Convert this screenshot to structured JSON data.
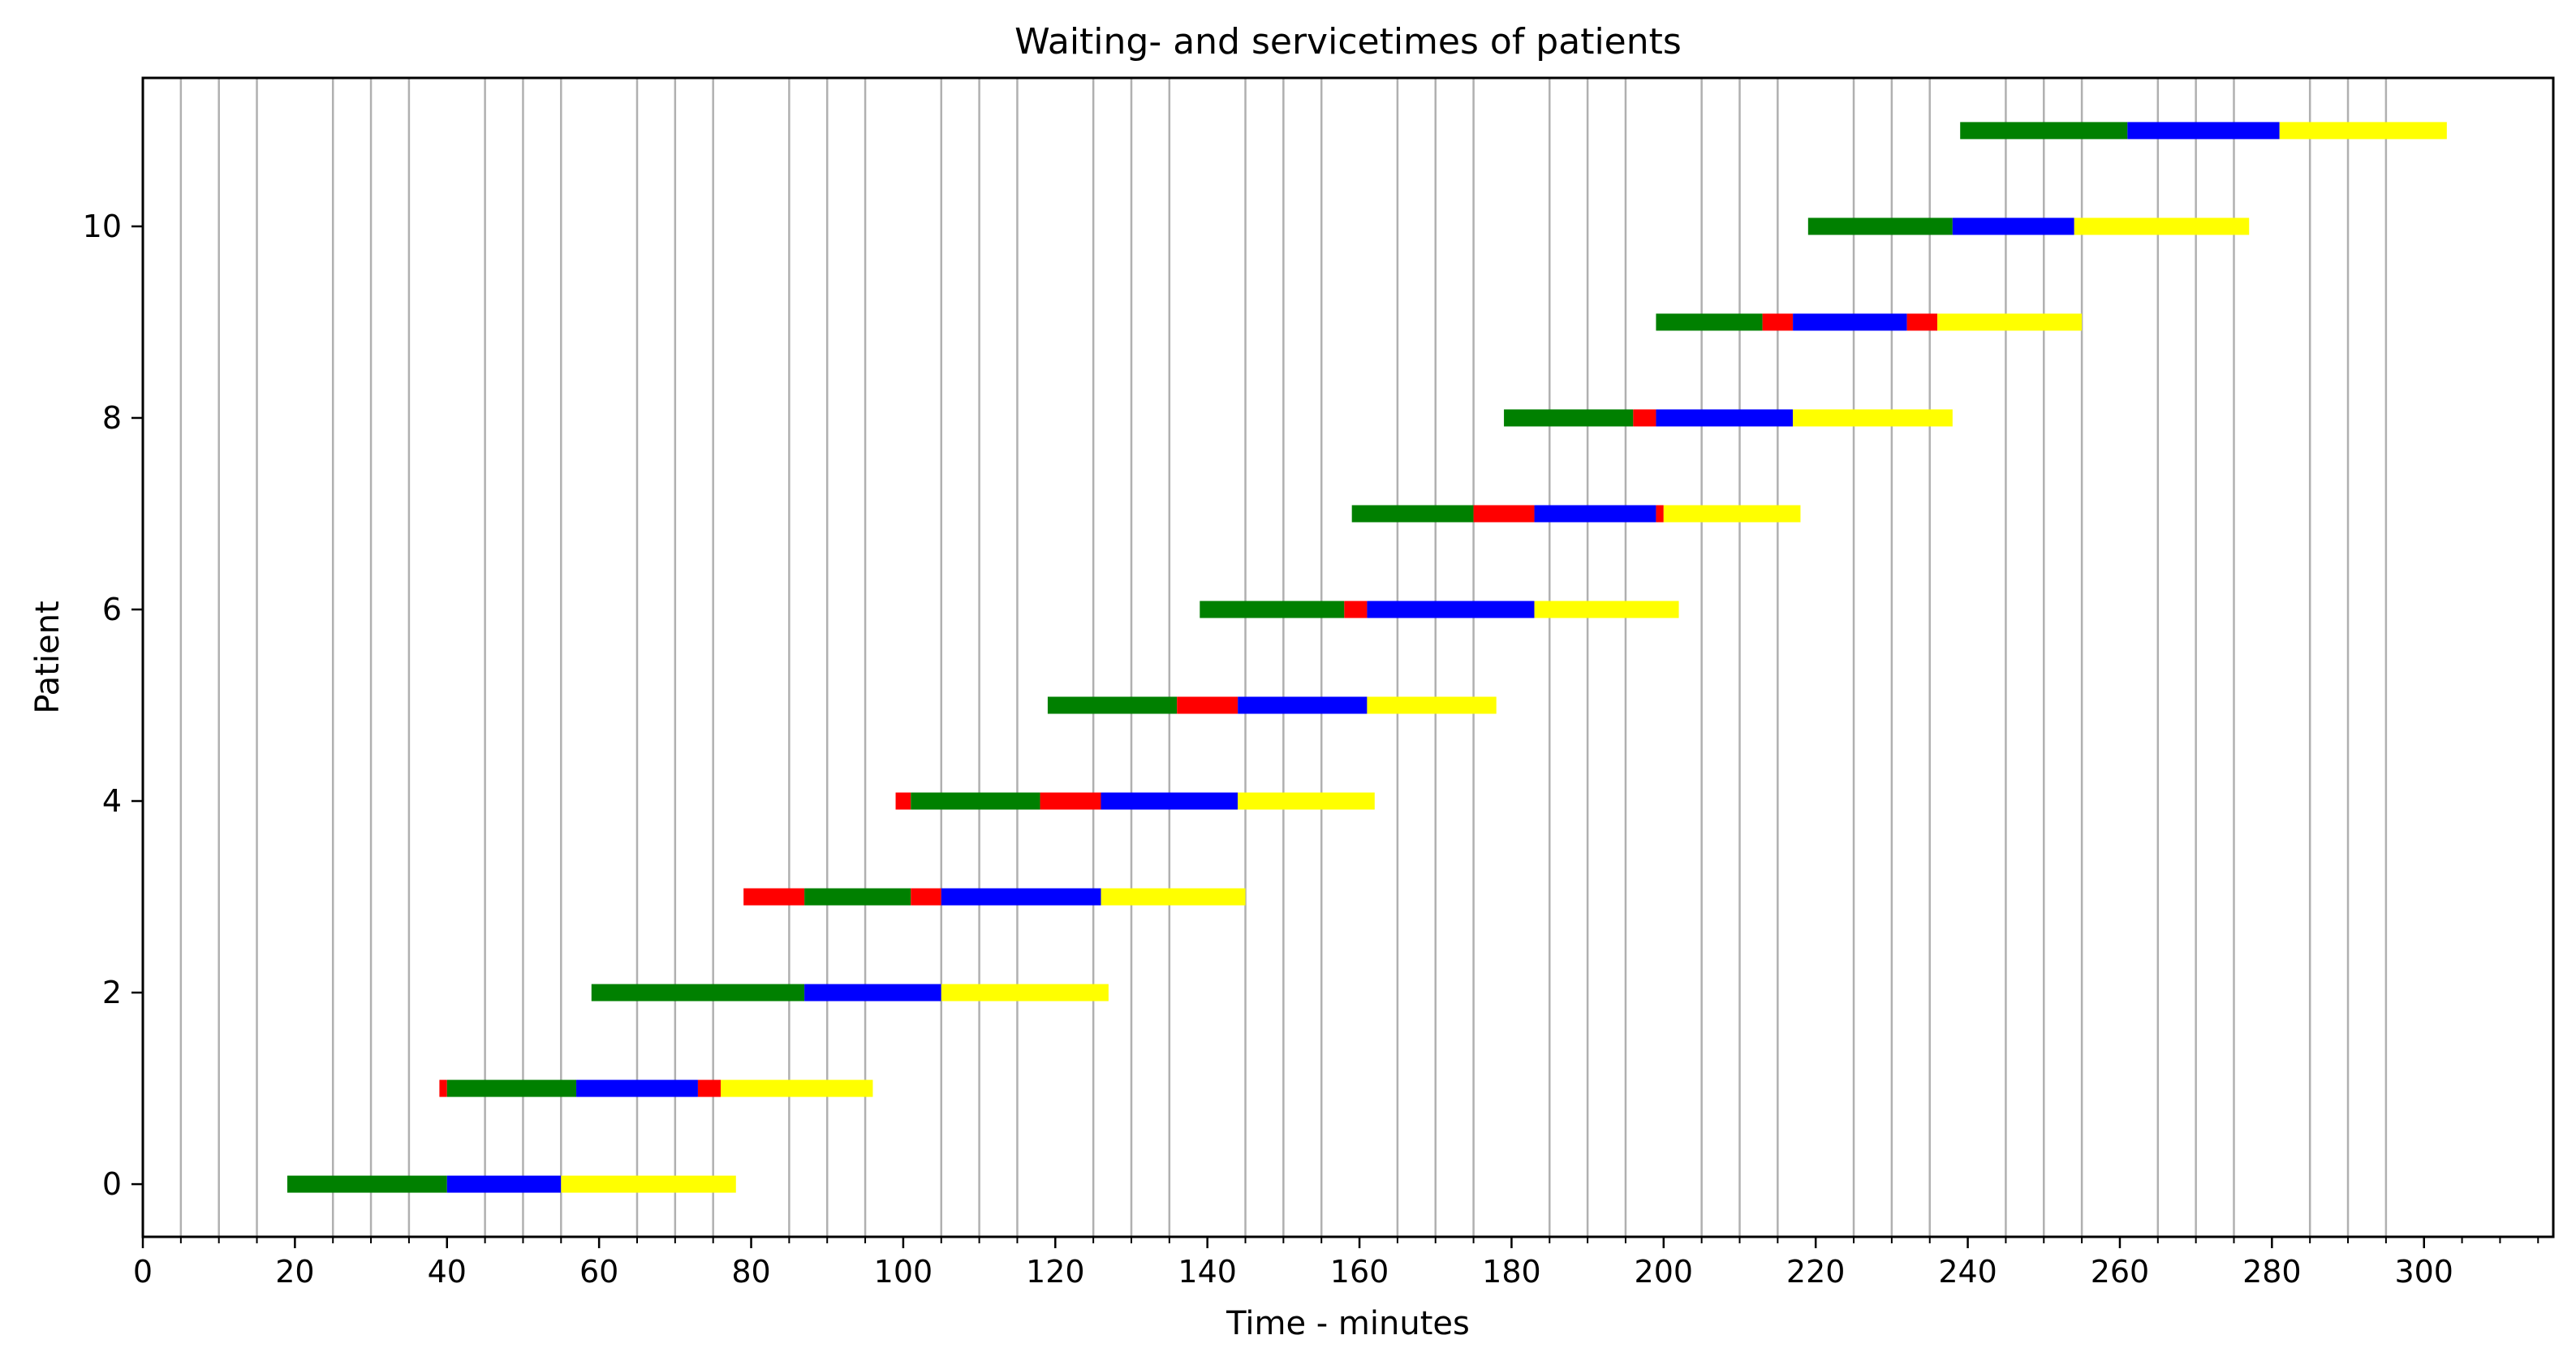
{
  "chart_data": {
    "type": "gantt",
    "title": "Waiting- and servicetimes of patients",
    "xlabel": "Time - minutes",
    "ylabel": "Patient",
    "xlim": [
      0,
      317
    ],
    "ylim": [
      -0.55,
      11.55
    ],
    "x_major_ticks": [
      0,
      20,
      40,
      60,
      80,
      100,
      120,
      140,
      160,
      180,
      200,
      220,
      240,
      260,
      280,
      300
    ],
    "x_minor_ticks": [
      5,
      10,
      15,
      25,
      30,
      35,
      45,
      50,
      55,
      65,
      70,
      75,
      85,
      90,
      95,
      105,
      110,
      115,
      125,
      130,
      135,
      145,
      150,
      155,
      165,
      170,
      175,
      185,
      190,
      195,
      205,
      210,
      215,
      225,
      230,
      235,
      245,
      250,
      255,
      265,
      270,
      275,
      285,
      290,
      295,
      305,
      310,
      315
    ],
    "y_ticks": [
      0,
      2,
      4,
      6,
      8,
      10
    ],
    "vertical_grid_lines": [
      5,
      10,
      15,
      25,
      30,
      35,
      45,
      50,
      55,
      65,
      70,
      75,
      85,
      90,
      95,
      105,
      110,
      115,
      125,
      130,
      135,
      145,
      150,
      155,
      165,
      170,
      175,
      185,
      190,
      195,
      205,
      210,
      215,
      225,
      230,
      235,
      245,
      250,
      255,
      265,
      270,
      275,
      285,
      290,
      295
    ],
    "colors": {
      "green": "#008000",
      "red": "#ff0000",
      "blue": "#0000ff",
      "yellow": "#ffff00",
      "grid": "#b0b0b0",
      "axis": "#000000"
    },
    "patients": [
      {
        "id": 0,
        "segments": [
          {
            "state": "green",
            "start": 19,
            "end": 40
          },
          {
            "state": "blue",
            "start": 40,
            "end": 55
          },
          {
            "state": "yellow",
            "start": 55,
            "end": 78
          }
        ]
      },
      {
        "id": 1,
        "segments": [
          {
            "state": "red",
            "start": 39,
            "end": 40
          },
          {
            "state": "green",
            "start": 40,
            "end": 57
          },
          {
            "state": "blue",
            "start": 57,
            "end": 73
          },
          {
            "state": "red",
            "start": 73,
            "end": 76
          },
          {
            "state": "yellow",
            "start": 76,
            "end": 96
          }
        ]
      },
      {
        "id": 2,
        "segments": [
          {
            "state": "green",
            "start": 59,
            "end": 87
          },
          {
            "state": "blue",
            "start": 87,
            "end": 105
          },
          {
            "state": "yellow",
            "start": 105,
            "end": 127
          }
        ]
      },
      {
        "id": 3,
        "segments": [
          {
            "state": "red",
            "start": 79,
            "end": 87
          },
          {
            "state": "green",
            "start": 87,
            "end": 101
          },
          {
            "state": "red",
            "start": 101,
            "end": 105
          },
          {
            "state": "blue",
            "start": 105,
            "end": 126
          },
          {
            "state": "yellow",
            "start": 126,
            "end": 145
          }
        ]
      },
      {
        "id": 4,
        "segments": [
          {
            "state": "red",
            "start": 99,
            "end": 101
          },
          {
            "state": "green",
            "start": 101,
            "end": 118
          },
          {
            "state": "red",
            "start": 118,
            "end": 126
          },
          {
            "state": "blue",
            "start": 126,
            "end": 144
          },
          {
            "state": "yellow",
            "start": 144,
            "end": 162
          }
        ]
      },
      {
        "id": 5,
        "segments": [
          {
            "state": "green",
            "start": 119,
            "end": 136
          },
          {
            "state": "red",
            "start": 136,
            "end": 144
          },
          {
            "state": "blue",
            "start": 144,
            "end": 161
          },
          {
            "state": "yellow",
            "start": 161,
            "end": 178
          }
        ]
      },
      {
        "id": 6,
        "segments": [
          {
            "state": "green",
            "start": 139,
            "end": 158
          },
          {
            "state": "red",
            "start": 158,
            "end": 161
          },
          {
            "state": "blue",
            "start": 161,
            "end": 183
          },
          {
            "state": "yellow",
            "start": 183,
            "end": 202
          }
        ]
      },
      {
        "id": 7,
        "segments": [
          {
            "state": "green",
            "start": 159,
            "end": 175
          },
          {
            "state": "red",
            "start": 175,
            "end": 183
          },
          {
            "state": "blue",
            "start": 183,
            "end": 199
          },
          {
            "state": "red",
            "start": 199,
            "end": 200
          },
          {
            "state": "yellow",
            "start": 200,
            "end": 218
          }
        ]
      },
      {
        "id": 8,
        "segments": [
          {
            "state": "green",
            "start": 179,
            "end": 196
          },
          {
            "state": "red",
            "start": 196,
            "end": 199
          },
          {
            "state": "blue",
            "start": 199,
            "end": 217
          },
          {
            "state": "yellow",
            "start": 217,
            "end": 238
          }
        ]
      },
      {
        "id": 9,
        "segments": [
          {
            "state": "green",
            "start": 199,
            "end": 213
          },
          {
            "state": "red",
            "start": 213,
            "end": 217
          },
          {
            "state": "blue",
            "start": 217,
            "end": 232
          },
          {
            "state": "red",
            "start": 232,
            "end": 236
          },
          {
            "state": "yellow",
            "start": 236,
            "end": 255
          }
        ]
      },
      {
        "id": 10,
        "segments": [
          {
            "state": "green",
            "start": 219,
            "end": 238
          },
          {
            "state": "blue",
            "start": 238,
            "end": 254
          },
          {
            "state": "yellow",
            "start": 254,
            "end": 277
          }
        ]
      },
      {
        "id": 11,
        "segments": [
          {
            "state": "green",
            "start": 239,
            "end": 261
          },
          {
            "state": "blue",
            "start": 261,
            "end": 281
          },
          {
            "state": "yellow",
            "start": 281,
            "end": 303
          }
        ]
      }
    ]
  }
}
